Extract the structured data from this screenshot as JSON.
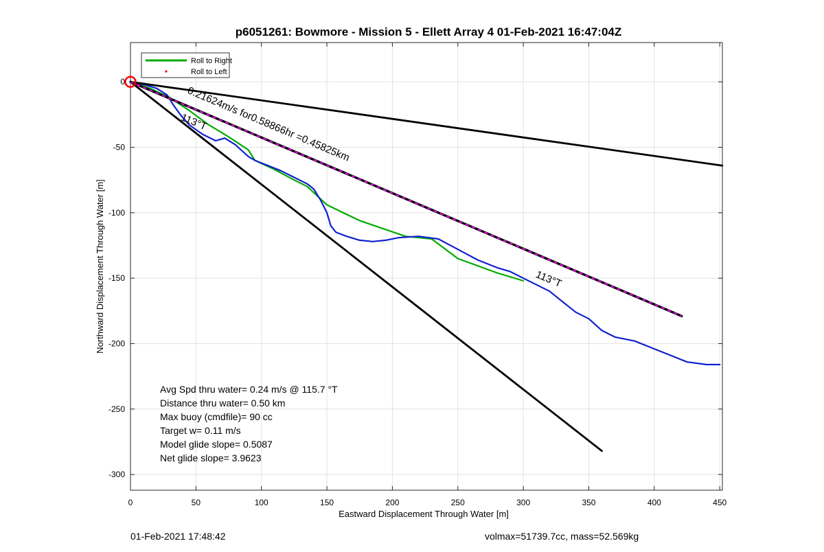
{
  "chart_data": {
    "type": "line",
    "title": "p6051261: Bowmore - Mission 5 - Ellett Array 4 01-Feb-2021 16:47:04Z",
    "xlabel": "Eastward Displacement Through Water [m]",
    "ylabel": "Northward Displacement Through Water [m]",
    "xlim": [
      0,
      452
    ],
    "ylim": [
      -312,
      30
    ],
    "xticks": [
      0,
      50,
      100,
      150,
      200,
      250,
      300,
      350,
      400,
      450
    ],
    "yticks": [
      0,
      -50,
      -100,
      -150,
      -200,
      -250,
      -300
    ],
    "grid": true,
    "legend": {
      "placement": "top-left",
      "entries": [
        {
          "label": "Roll to Right",
          "color": "#00aa00",
          "style": "line"
        },
        {
          "label": "Roll to Left",
          "color": "#ff0000",
          "style": "dot"
        }
      ]
    },
    "series": [
      {
        "name": "Roll to Right",
        "color": "#00aa00",
        "width": 2.2,
        "points": [
          [
            0,
            0
          ],
          [
            15,
            -5
          ],
          [
            30,
            -12
          ],
          [
            45,
            -22
          ],
          [
            60,
            -33
          ],
          [
            75,
            -42
          ],
          [
            90,
            -52
          ],
          [
            95,
            -60
          ],
          [
            110,
            -67
          ],
          [
            125,
            -75
          ],
          [
            135,
            -80
          ],
          [
            150,
            -94
          ],
          [
            175,
            -106
          ],
          [
            210,
            -118
          ],
          [
            230,
            -120
          ],
          [
            250,
            -135
          ],
          [
            280,
            -146
          ],
          [
            300,
            -152
          ]
        ]
      },
      {
        "color": "#1020d0",
        "width": 2.2,
        "points": [
          [
            0,
            0
          ],
          [
            10,
            -2
          ],
          [
            20,
            -5
          ],
          [
            28,
            -10
          ],
          [
            33,
            -18
          ],
          [
            38,
            -25
          ],
          [
            45,
            -33
          ],
          [
            55,
            -40
          ],
          [
            65,
            -45
          ],
          [
            72,
            -43
          ],
          [
            80,
            -48
          ],
          [
            90,
            -57
          ],
          [
            95,
            -60
          ],
          [
            105,
            -64
          ],
          [
            115,
            -68
          ],
          [
            125,
            -73
          ],
          [
            135,
            -78
          ],
          [
            140,
            -82
          ],
          [
            145,
            -90
          ],
          [
            150,
            -100
          ],
          [
            153,
            -110
          ],
          [
            157,
            -115
          ],
          [
            165,
            -118
          ],
          [
            175,
            -121
          ],
          [
            185,
            -122
          ],
          [
            195,
            -121
          ],
          [
            205,
            -119
          ],
          [
            220,
            -118
          ],
          [
            235,
            -120
          ],
          [
            250,
            -128
          ],
          [
            265,
            -136
          ],
          [
            280,
            -142
          ],
          [
            290,
            -145
          ],
          [
            300,
            -150
          ],
          [
            310,
            -155
          ],
          [
            320,
            -160
          ],
          [
            330,
            -168
          ],
          [
            340,
            -176
          ],
          [
            350,
            -181
          ],
          [
            360,
            -190
          ],
          [
            370,
            -195
          ],
          [
            385,
            -198
          ],
          [
            400,
            -204
          ],
          [
            415,
            -210
          ],
          [
            425,
            -214
          ],
          [
            440,
            -216
          ],
          [
            450,
            -216
          ]
        ]
      },
      {
        "color": "#000000",
        "width": 2.8,
        "points": [
          [
            0,
            0
          ],
          [
            452,
            -64
          ]
        ]
      },
      {
        "color": "#000000",
        "width": 2.8,
        "points": [
          [
            0,
            0
          ],
          [
            360,
            -282
          ]
        ]
      },
      {
        "color": "#000000",
        "width": 3.4,
        "overlay_color": "#ff00ff",
        "overlay_dash": "5 5",
        "points": [
          [
            0,
            0
          ],
          [
            421,
            -179
          ]
        ]
      }
    ],
    "start_marker": {
      "x": 0,
      "y": 0,
      "color": "#ff0000"
    },
    "annotations": [
      {
        "text": "0.21624m/s for0.58866hr =0.45825km",
        "x": 43,
        "y": -8.5,
        "angle": 23
      },
      {
        "text": "113°T",
        "x": 38,
        "y": -29,
        "angle": 23
      },
      {
        "text": "113°T",
        "x": 309,
        "y": -149,
        "angle": 23
      }
    ],
    "stats_lines": [
      "Avg Spd thru water=  0.24 m/s @ 115.7 °T",
      "Distance thru water=  0.50 km",
      "Max buoy (cmdfile)= 90 cc",
      "Target w= 0.11 m/s",
      "Model glide slope= 0.5087",
      "Net glide slope= 3.9623"
    ]
  },
  "footer": {
    "left": "01-Feb-2021 17:48:42",
    "right": "volmax=51739.7cc, mass=52.569kg"
  }
}
